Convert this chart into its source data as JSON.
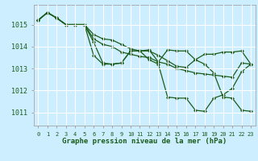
{
  "title": "Graphe pression niveau de la mer (hPa)",
  "background_color": "#cceeff",
  "grid_color": "#ffffff",
  "line_color": "#1a5c1a",
  "ylim": [
    1010.4,
    1015.9
  ],
  "yticks": [
    1011,
    1012,
    1013,
    1014,
    1015
  ],
  "xlim": [
    -0.5,
    23.5
  ],
  "series": [
    [
      1015.2,
      1015.55,
      1015.3,
      1015.0,
      1015.0,
      1015.0,
      1014.55,
      1014.35,
      1014.3,
      1014.1,
      1013.9,
      1013.8,
      1013.8,
      1013.6,
      1013.35,
      1013.1,
      1013.05,
      1013.4,
      1013.65,
      1013.65,
      1013.75,
      1013.75,
      1013.8,
      1013.2
    ],
    [
      1015.2,
      1015.55,
      1015.3,
      1015.0,
      1015.0,
      1015.0,
      1014.35,
      1014.1,
      1014.0,
      1013.75,
      1013.65,
      1013.55,
      1013.5,
      1013.3,
      1013.2,
      1013.0,
      1012.9,
      1012.8,
      1012.75,
      1012.7,
      1012.65,
      1012.6,
      1013.25,
      1013.2
    ],
    [
      1015.2,
      1015.55,
      1015.3,
      1015.0,
      1015.0,
      1015.0,
      1014.2,
      1013.25,
      1013.2,
      1013.25,
      1013.8,
      1013.8,
      1013.85,
      1013.3,
      1013.85,
      1013.8,
      1013.8,
      1013.4,
      1013.2,
      1012.8,
      1011.7,
      1011.65,
      1011.1,
      1011.05
    ],
    [
      1015.2,
      1015.55,
      1015.3,
      1015.0,
      1015.0,
      1015.0,
      1013.6,
      1013.2,
      1013.2,
      1013.25,
      1013.8,
      1013.8,
      1013.4,
      1013.2,
      1011.7,
      1011.65,
      1011.65,
      1011.1,
      1011.05,
      1011.65,
      1011.8,
      1012.1,
      1012.85,
      1013.2
    ]
  ]
}
